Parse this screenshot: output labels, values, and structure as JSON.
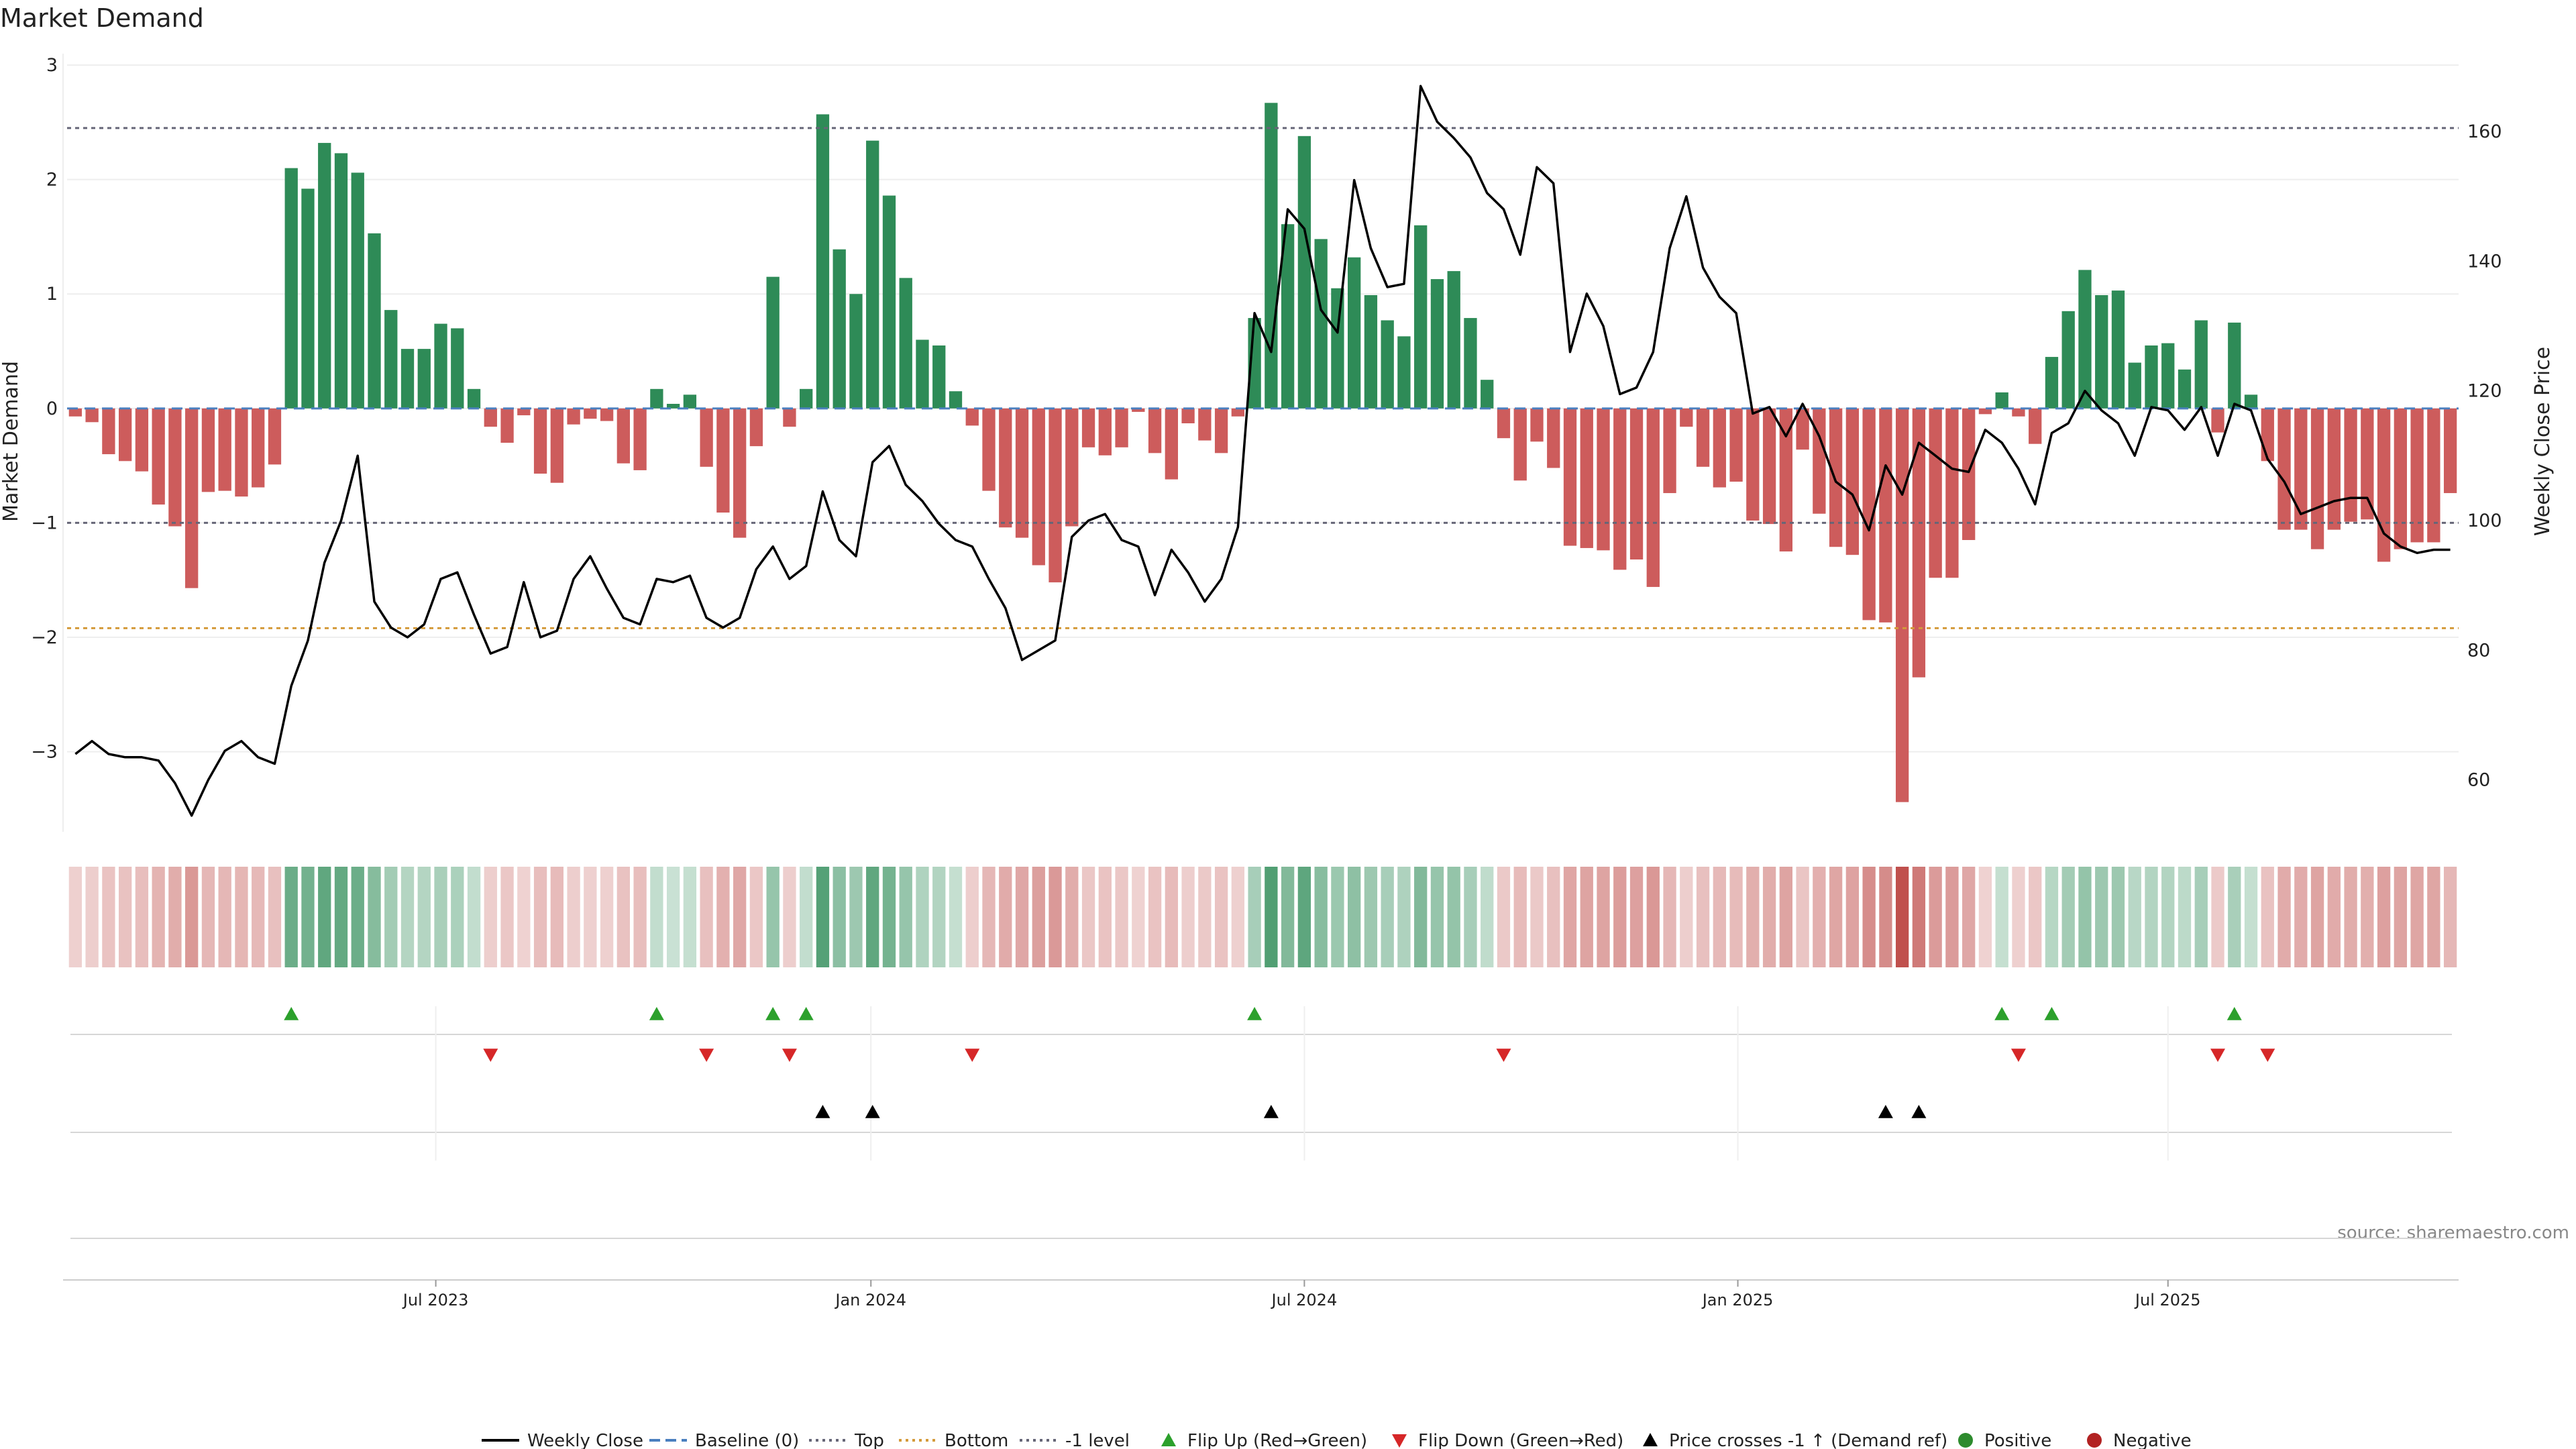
{
  "chart_data": {
    "type": "bar",
    "title": "Market Demand",
    "ylabel": "Market Demand",
    "y2label": "Weekly Close Price",
    "source": "source: sharemaestro.com",
    "ylim": [
      -3.7,
      3.1
    ],
    "y2lim": [
      52,
      172
    ],
    "yticks": [
      3,
      2,
      1,
      0,
      -1,
      -2,
      -3
    ],
    "y2ticks": [
      60,
      80,
      100,
      120,
      140,
      160
    ],
    "xtick_labels": [
      "Jul 2023",
      "Jan 2024",
      "Jul 2024",
      "Jan 2025",
      "Jul 2025"
    ],
    "xtick_weeks": [
      21.7,
      47.9,
      74.0,
      100.1,
      126.0
    ],
    "reference_lines": {
      "top": 2.45,
      "bottom": -1.92,
      "minus_one": -1.0,
      "baseline": 0
    },
    "colors": {
      "positive": "#2e8b57",
      "negative": "#cd5c5c",
      "price": "#000000",
      "flip_up": "#2ca02c",
      "flip_down": "#d62728",
      "cross": "#000000",
      "top_line": "#666677",
      "bottom_line": "#d49a3a"
    },
    "demand": [
      -0.07,
      -0.12,
      -0.4,
      -0.46,
      -0.55,
      -0.84,
      -1.03,
      -1.57,
      -0.73,
      -0.72,
      -0.77,
      -0.69,
      -0.49,
      2.1,
      1.92,
      2.32,
      2.23,
      2.06,
      1.53,
      0.86,
      0.52,
      0.52,
      0.74,
      0.7,
      0.17,
      -0.16,
      -0.3,
      -0.06,
      -0.57,
      -0.65,
      -0.14,
      -0.09,
      -0.11,
      -0.48,
      -0.54,
      0.17,
      0.04,
      0.12,
      -0.51,
      -0.91,
      -1.13,
      -0.33,
      1.15,
      -0.16,
      0.17,
      2.57,
      1.39,
      1.0,
      2.34,
      1.86,
      1.14,
      0.6,
      0.55,
      0.15,
      -0.15,
      -0.72,
      -1.04,
      -1.13,
      -1.37,
      -1.52,
      -1.03,
      -0.34,
      -0.41,
      -0.34,
      -0.03,
      -0.39,
      -0.62,
      -0.13,
      -0.28,
      -0.39,
      -0.07,
      0.79,
      2.67,
      1.61,
      2.38,
      1.48,
      1.05,
      1.32,
      0.99,
      0.77,
      0.63,
      1.6,
      1.13,
      1.2,
      0.79,
      0.25,
      -0.26,
      -0.63,
      -0.29,
      -0.52,
      -1.2,
      -1.22,
      -1.24,
      -1.41,
      -1.32,
      -1.56,
      -0.74,
      -0.16,
      -0.51,
      -0.69,
      -0.64,
      -0.98,
      -1.01,
      -1.25,
      -0.36,
      -0.92,
      -1.21,
      -1.28,
      -1.85,
      -1.87,
      -3.44,
      -2.35,
      -1.48,
      -1.48,
      -1.15,
      -0.05,
      0.14,
      -0.07,
      -0.31,
      0.45,
      0.85,
      1.21,
      0.99,
      1.03,
      0.4,
      0.55,
      0.57,
      0.34,
      0.77,
      -0.21,
      0.75,
      0.12,
      -0.46,
      -1.06,
      -1.06,
      -1.23,
      -1.06,
      -0.99,
      -0.97,
      -1.34,
      -1.23,
      -1.17,
      -1.17,
      -0.74
    ],
    "price": [
      64,
      66,
      64,
      63.5,
      63.5,
      63,
      59.5,
      54.5,
      60,
      64.5,
      66,
      63.5,
      62.5,
      74.5,
      81.5,
      93.5,
      100,
      110,
      87.5,
      83.5,
      82,
      84,
      91,
      92,
      85.5,
      79.5,
      80.5,
      90.5,
      82,
      83,
      91,
      94.5,
      89.5,
      85,
      84,
      91,
      90.5,
      91.5,
      85,
      83.5,
      85,
      92.5,
      96,
      91,
      93,
      104.5,
      97,
      94.5,
      109,
      111.5,
      105.5,
      103,
      99.5,
      97,
      96,
      91,
      86.5,
      78.5,
      80,
      81.5,
      97.5,
      100,
      101,
      97,
      96,
      88.5,
      95.5,
      92,
      87.5,
      91,
      99,
      132,
      126,
      148,
      145,
      132.5,
      129,
      152.5,
      142,
      136,
      136.5,
      167,
      161.5,
      159,
      156,
      150.5,
      148,
      141,
      154.5,
      152,
      126,
      135,
      130,
      119.5,
      120.5,
      126,
      142,
      150,
      139,
      134.5,
      132,
      116.5,
      117.5,
      113,
      118,
      113,
      106,
      104,
      98.5,
      108.5,
      104,
      112,
      110,
      108,
      107.5,
      114,
      112,
      108,
      102.5,
      113.5,
      115,
      120,
      117,
      115,
      110,
      117.5,
      117,
      114,
      117.5,
      110,
      118,
      117,
      109.5,
      106,
      101,
      102,
      103,
      103.5,
      103.5,
      98,
      96,
      95,
      95.5,
      95.5
    ],
    "flip_up_weeks": [
      13,
      35,
      42,
      44,
      71,
      116,
      119,
      130
    ],
    "flip_down_weeks": [
      25,
      38,
      43,
      54,
      86,
      117,
      129,
      132
    ],
    "cross_weeks": [
      45,
      48,
      72,
      109,
      111
    ],
    "legend": [
      "Weekly Close",
      "Baseline (0)",
      "Top",
      "Bottom",
      "-1 level",
      "Flip Up (Red→Green)",
      "Flip Down (Green→Red)",
      "Price crosses -1 ↑ (Demand ref)",
      "Positive",
      "Negative"
    ]
  }
}
